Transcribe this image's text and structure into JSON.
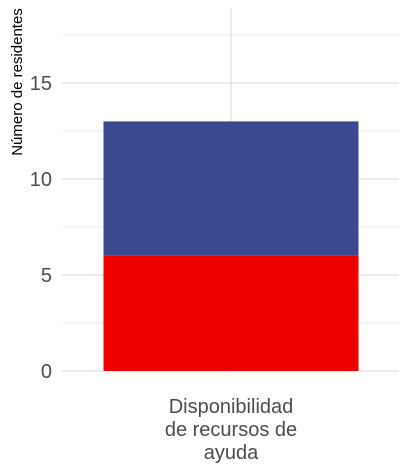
{
  "chart_data": {
    "type": "bar",
    "stacked": true,
    "categories": [
      "Disponibilidad de recursos de ayuda"
    ],
    "category_lines": [
      [
        "Disponibilidad",
        "de recursos de",
        "ayuda"
      ]
    ],
    "series": [
      {
        "values": [
          6
        ],
        "color": "#ee0000"
      },
      {
        "values": [
          7
        ],
        "color": "#3b4992"
      }
    ],
    "title": "",
    "xlabel": "",
    "ylabel": "Número de residentes",
    "ylim": [
      0,
      18.7
    ],
    "yticks": [
      0,
      5,
      10,
      15
    ],
    "grid": true,
    "legend": "none"
  }
}
